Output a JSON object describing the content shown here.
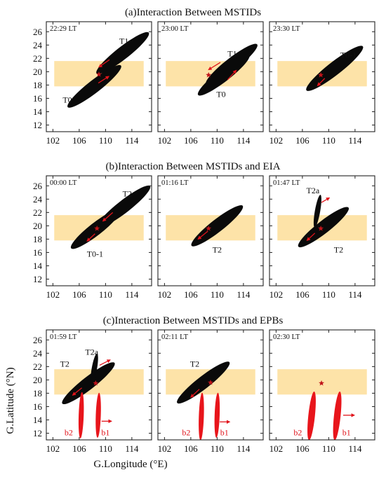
{
  "rows": [
    {
      "title": "(a)Interaction Between MSTIDs",
      "panels": [
        {
          "time": "22:29 LT",
          "star": [
            109,
            19.6
          ],
          "ellipses": [
            {
              "label": "T1",
              "cx": 112.6,
              "cy": 22.8,
              "rx": 5.0,
              "ry": 0.95,
              "angle": 38,
              "color": "black",
              "label_at": [
                112.8,
                24.6
              ]
            },
            {
              "label": "T0",
              "cx": 108.3,
              "cy": 17.8,
              "rx": 5.1,
              "ry": 0.95,
              "angle": 38,
              "color": "black",
              "label_at": [
                104.2,
                15.8
              ]
            }
          ],
          "arrows": [
            {
              "x1": 110.6,
              "y1": 21.8,
              "x2": 109.0,
              "y2": 20.7
            },
            {
              "x1": 108.9,
              "y1": 18.3,
              "x2": 110.5,
              "y2": 19.3
            }
          ]
        },
        {
          "time": "23:00 LT",
          "star": [
            108.7,
            19.5
          ],
          "ellipses": [
            {
              "label": "T1",
              "cx": 112.2,
              "cy": 21.1,
              "rx": 4.9,
              "ry": 0.95,
              "angle": 38,
              "color": "black",
              "label_at": [
                112.3,
                22.7
              ]
            },
            {
              "label": "T0",
              "cx": 111.0,
              "cy": 19.5,
              "rx": 4.9,
              "ry": 0.95,
              "angle": 38,
              "color": "black",
              "label_at": [
                110.6,
                16.6
              ]
            }
          ],
          "arrows": [
            {
              "x1": 110.5,
              "y1": 21.4,
              "x2": 108.7,
              "y2": 20.3
            },
            {
              "x1": 111.6,
              "y1": 18.8,
              "x2": 112.9,
              "y2": 20.2
            }
          ]
        },
        {
          "time": "23:30 LT",
          "star": [
            108.8,
            19.5
          ],
          "ellipses": [
            {
              "label": "T0-1",
              "cx": 110.9,
              "cy": 20.5,
              "rx": 5.4,
              "ry": 1.0,
              "angle": 38,
              "color": "black",
              "label_at": [
                113.0,
                22.5
              ]
            }
          ],
          "arrows": [
            {
              "x1": 109.4,
              "y1": 19.0,
              "x2": 108.3,
              "y2": 17.9
            }
          ]
        }
      ]
    },
    {
      "title": "(b)Interaction Between MSTIDs and EIA",
      "panels": [
        {
          "time": "00:00 LT",
          "star": [
            108.7,
            19.6
          ],
          "ellipses": [
            {
              "label": "T2",
              "cx": 112.8,
              "cy": 22.9,
              "rx": 5.0,
              "ry": 0.95,
              "angle": 38,
              "color": "black",
              "label_at": [
                113.3,
                24.8
              ]
            },
            {
              "label": "T0-1",
              "cx": 108.5,
              "cy": 19.5,
              "rx": 4.7,
              "ry": 0.95,
              "angle": 38,
              "color": "black",
              "label_at": [
                108.4,
                15.8
              ]
            }
          ],
          "arrows": [
            {
              "x1": 111.1,
              "y1": 22.0,
              "x2": 109.6,
              "y2": 20.7
            },
            {
              "x1": 108.4,
              "y1": 18.8,
              "x2": 107.2,
              "y2": 17.7
            }
          ]
        },
        {
          "time": "01:16 LT",
          "star": [
            108.7,
            19.6
          ],
          "ellipses": [
            {
              "label": "T2",
              "cx": 110.0,
              "cy": 20.0,
              "rx": 4.9,
              "ry": 0.95,
              "angle": 38,
              "color": "black",
              "label_at": [
                110.0,
                16.4
              ]
            }
          ],
          "arrows": [
            {
              "x1": 108.6,
              "y1": 19.2,
              "x2": 107.1,
              "y2": 18.0
            }
          ]
        },
        {
          "time": "01:47 LT",
          "star": [
            108.8,
            19.6
          ],
          "ellipses": [
            {
              "label": "T2",
              "cx": 109.2,
              "cy": 19.8,
              "rx": 4.8,
              "ry": 0.95,
              "angle": 38,
              "color": "black",
              "label_at": [
                111.5,
                16.4
              ]
            },
            {
              "label": "T2a",
              "cx": 108.3,
              "cy": 22.2,
              "rx": 2.5,
              "ry": 0.4,
              "angle": 80,
              "color": "black",
              "label_at": [
                107.6,
                25.3
              ]
            }
          ],
          "arrows": [
            {
              "x1": 107.9,
              "y1": 18.9,
              "x2": 106.7,
              "y2": 17.8
            },
            {
              "x1": 108.9,
              "y1": 23.5,
              "x2": 110.1,
              "y2": 24.2
            }
          ]
        }
      ]
    },
    {
      "title": "(c)Interaction Between MSTIDs and EPBs",
      "panels": [
        {
          "time": "01:59 LT",
          "star": [
            108.5,
            19.5
          ],
          "ellipses": [
            {
              "label": "T2",
              "cx": 107.4,
              "cy": 19.5,
              "rx": 5.0,
              "ry": 0.95,
              "angle": 38,
              "color": "black",
              "label_at": [
                103.8,
                22.4
              ]
            },
            {
              "label": "T2a",
              "cx": 108.3,
              "cy": 21.7,
              "rx": 2.3,
              "ry": 0.4,
              "angle": 80,
              "color": "black",
              "label_at": [
                107.9,
                24.2
              ]
            },
            {
              "label": "b2",
              "cx": 106.3,
              "cy": 14.7,
              "rx": 3.5,
              "ry": 0.38,
              "angle": 88,
              "color": "red",
              "label_at": [
                104.4,
                12.1
              ]
            },
            {
              "label": "b1",
              "cx": 108.9,
              "cy": 14.7,
              "rx": 3.4,
              "ry": 0.38,
              "angle": 88,
              "color": "red",
              "label_at": [
                110.0,
                12.1
              ]
            }
          ],
          "arrows": [
            {
              "x1": 106.4,
              "y1": 18.8,
              "x2": 105.0,
              "y2": 17.7
            },
            {
              "x1": 109.1,
              "y1": 22.2,
              "x2": 110.7,
              "y2": 23.0
            },
            {
              "x1": 109.4,
              "y1": 13.8,
              "x2": 110.9,
              "y2": 13.8
            }
          ]
        },
        {
          "time": "02:11 LT",
          "star": [
            109.0,
            19.6
          ],
          "ellipses": [
            {
              "label": "T2",
              "cx": 107.9,
              "cy": 19.6,
              "rx": 5.0,
              "ry": 0.95,
              "angle": 38,
              "color": "black",
              "label_at": [
                106.6,
                22.4
              ]
            },
            {
              "label": "b2",
              "cx": 107.6,
              "cy": 14.5,
              "rx": 3.6,
              "ry": 0.38,
              "angle": 88,
              "color": "red",
              "label_at": [
                105.3,
                12.1
              ]
            },
            {
              "label": "b1",
              "cx": 110.0,
              "cy": 14.7,
              "rx": 3.4,
              "ry": 0.38,
              "angle": 88,
              "color": "red",
              "label_at": [
                111.1,
                12.1
              ]
            }
          ],
          "arrows": [
            {
              "x1": 107.3,
              "y1": 18.6,
              "x2": 106.0,
              "y2": 17.4
            },
            {
              "x1": 110.4,
              "y1": 13.7,
              "x2": 111.9,
              "y2": 13.7
            }
          ]
        },
        {
          "time": "02:30 LT",
          "star": [
            108.9,
            19.5
          ],
          "ellipses": [
            {
              "label": "b2",
              "cx": 107.4,
              "cy": 14.6,
              "rx": 3.7,
              "ry": 0.5,
              "angle": 84,
              "color": "red",
              "label_at": [
                105.3,
                12.1
              ]
            },
            {
              "label": "b1",
              "cx": 111.3,
              "cy": 14.6,
              "rx": 3.7,
              "ry": 0.5,
              "angle": 84,
              "color": "red",
              "label_at": [
                112.7,
                12.1
              ]
            }
          ],
          "arrows": [
            {
              "x1": 112.2,
              "y1": 14.7,
              "x2": 113.9,
              "y2": 14.7
            }
          ]
        }
      ]
    }
  ],
  "axes": {
    "xlabel": "G.Longitude (°E)",
    "ylabel": "G.Latitude (°N)",
    "xlim": [
      101,
      117
    ],
    "ylim": [
      11,
      27.5
    ],
    "xticks": [
      102,
      106,
      110,
      114
    ],
    "yticks": [
      12,
      14,
      16,
      18,
      20,
      22,
      24,
      26
    ],
    "eia_band": [
      17.8,
      21.6
    ]
  },
  "colors": {
    "eia_band": "#fde3a8",
    "mstid": "#0a0a0a",
    "epb": "#e8151b",
    "arrow": "#e1141b",
    "star": "#c0141a"
  }
}
